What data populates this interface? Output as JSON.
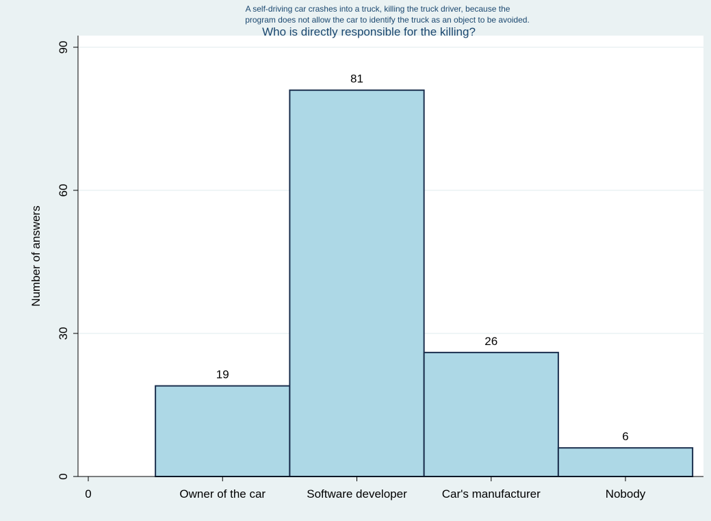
{
  "chart_data": {
    "type": "bar",
    "title_lines": [
      "A self-driving car crashes into a truck, killing the truck driver, because the",
      "program does not allow the car to identify the truck as an object to be avoided."
    ],
    "title": "Who is directly responsible for the killing?",
    "xlabel": "",
    "ylabel": "Number of answers",
    "categories": [
      "Owner of the car",
      "Software developer",
      "Car's manufacturer",
      "Nobody"
    ],
    "values": [
      19,
      81,
      26,
      6
    ],
    "data_labels": [
      "19",
      "81",
      "26",
      "6"
    ],
    "x_extra_tick": "0",
    "ylim": [
      0,
      90
    ],
    "yticks": [
      "0",
      "30",
      "60",
      "90"
    ],
    "grid": true,
    "legend": "none",
    "colors": {
      "bar_fill": "#add8e6",
      "bar_stroke": "#1a2e4d",
      "plot_bg": "#ffffff",
      "outer_bg": "#eaf2f3",
      "title": "#1a476f"
    }
  }
}
